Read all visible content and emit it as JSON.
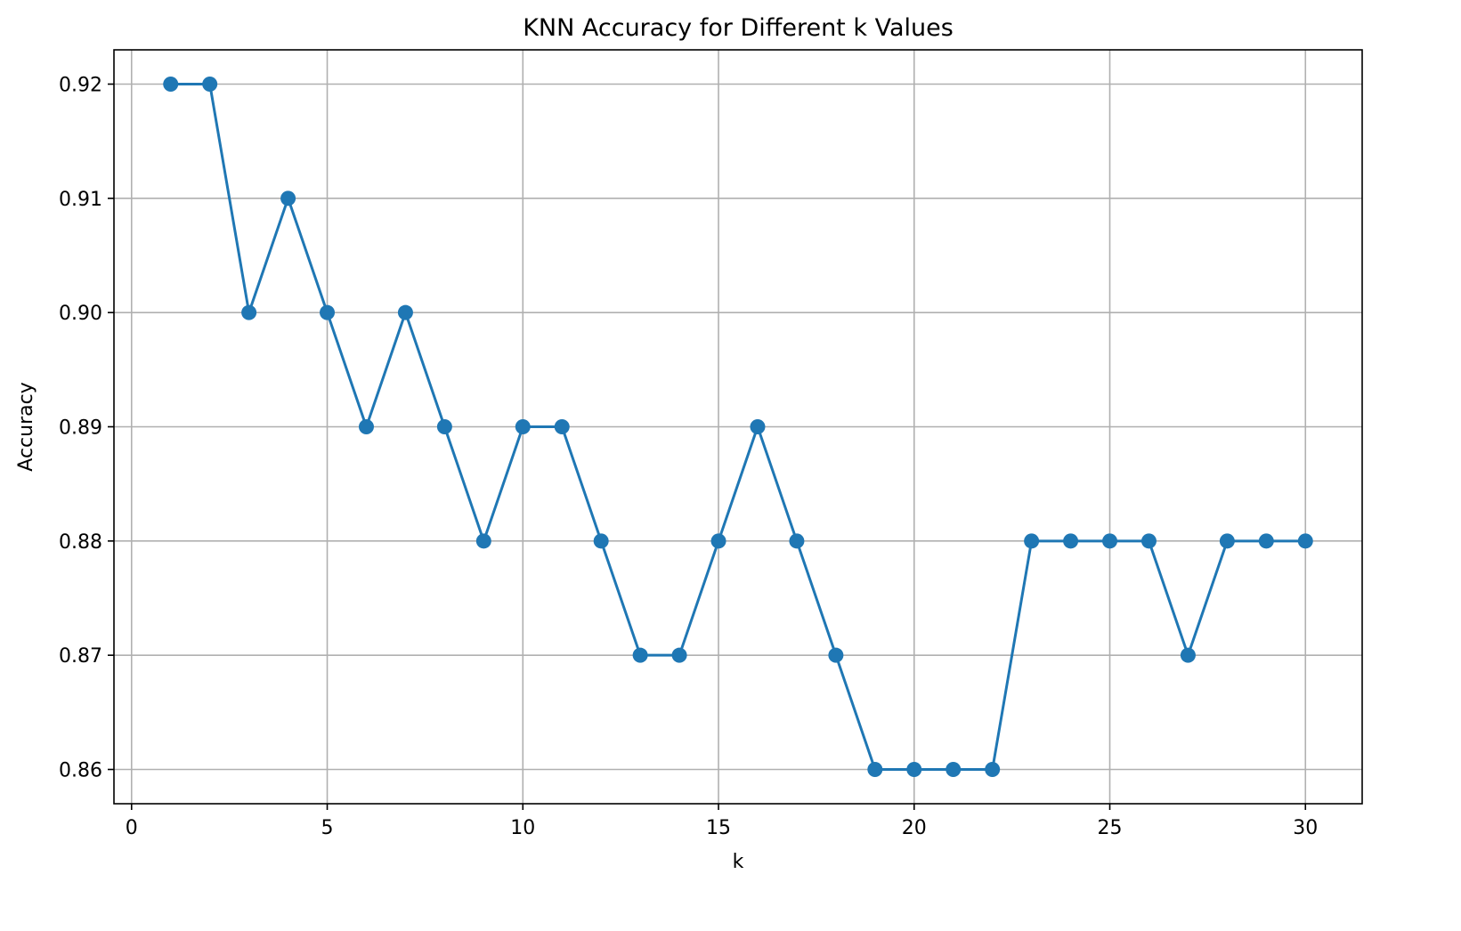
{
  "chart_data": {
    "type": "line",
    "title": "KNN Accuracy for Different k Values",
    "xlabel": "k",
    "ylabel": "Accuracy",
    "xlim": [
      -0.45,
      31.45
    ],
    "ylim": [
      0.857,
      0.923
    ],
    "xticks": [
      0,
      5,
      10,
      15,
      20,
      25,
      30
    ],
    "yticks": [
      0.86,
      0.87,
      0.88,
      0.89,
      0.9,
      0.91,
      0.92
    ],
    "ytick_labels": [
      "0.86",
      "0.87",
      "0.88",
      "0.89",
      "0.90",
      "0.91",
      "0.92"
    ],
    "grid": true,
    "marker": "circle",
    "series": [
      {
        "color": "#1f77b4",
        "x": [
          1,
          2,
          3,
          4,
          5,
          6,
          7,
          8,
          9,
          10,
          11,
          12,
          13,
          14,
          15,
          16,
          17,
          18,
          19,
          20,
          21,
          22,
          23,
          24,
          25,
          26,
          27,
          28,
          29,
          30
        ],
        "y": [
          0.92,
          0.92,
          0.9,
          0.91,
          0.9,
          0.89,
          0.9,
          0.89,
          0.88,
          0.89,
          0.89,
          0.88,
          0.87,
          0.87,
          0.88,
          0.89,
          0.88,
          0.87,
          0.86,
          0.86,
          0.86,
          0.86,
          0.88,
          0.88,
          0.88,
          0.88,
          0.87,
          0.88,
          0.88,
          0.88
        ]
      }
    ]
  }
}
